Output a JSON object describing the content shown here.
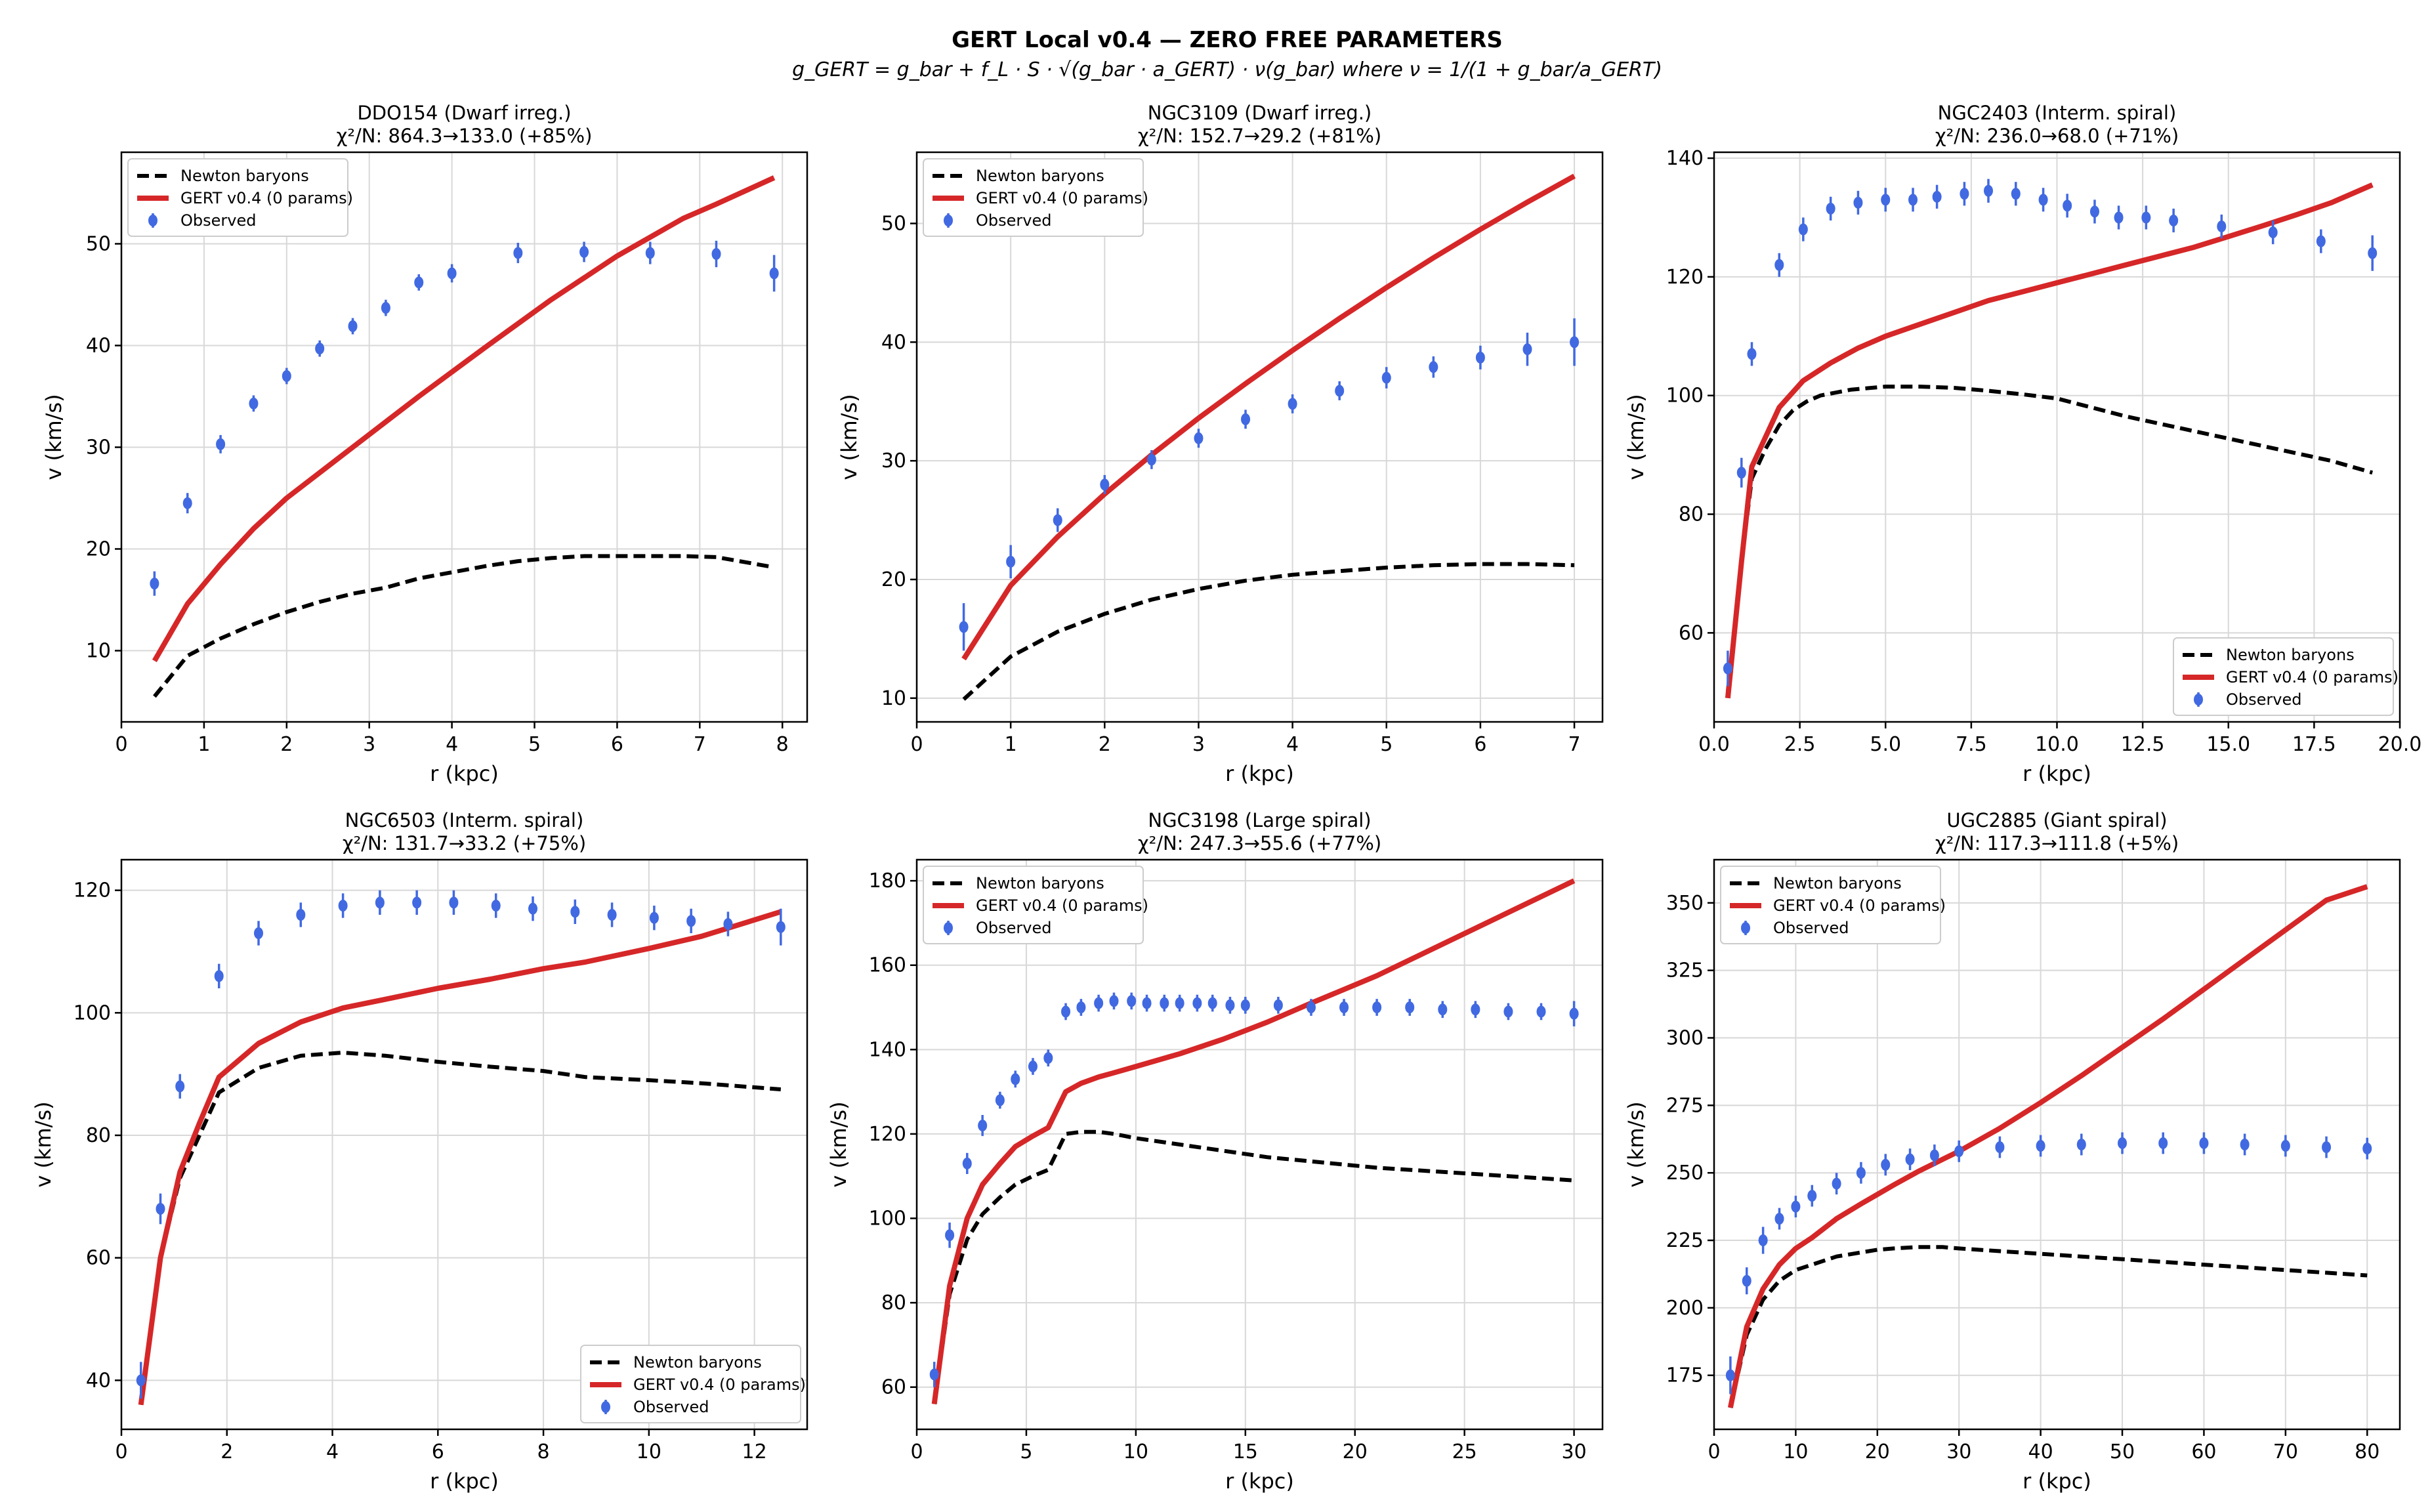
{
  "suptitle": "GERT Local v0.4 — ZERO FREE PARAMETERS",
  "formula": "g_GERT = g_bar + f_L · S · √(g_bar · a_GERT) · ν(g_bar)   where   ν = 1/(1 + g_bar/a_GERT)",
  "legend_labels": {
    "newton": "Newton baryons",
    "gert": "GERT v0.4 (0 params)",
    "obs": "Observed"
  },
  "colors": {
    "newton": "#000000",
    "gert": "#d62728",
    "observed": "#4169e1"
  },
  "chart_data": [
    {
      "type": "line",
      "title": "DDO154 (Dwarf irreg.)",
      "subtitle": "χ²/N: 864.3→133.0 (+85%)",
      "xlabel": "r (kpc)",
      "ylabel": "v (km/s)",
      "xlim": [
        0,
        8.3
      ],
      "ylim": [
        3,
        59
      ],
      "xticks": [
        0,
        1,
        2,
        3,
        4,
        5,
        6,
        7,
        8
      ],
      "yticks": [
        10,
        20,
        30,
        40,
        50
      ],
      "legend": "top-left",
      "grid": true,
      "newton": {
        "x": [
          0.4,
          0.8,
          1.2,
          1.6,
          2.0,
          2.4,
          2.8,
          3.2,
          3.6,
          4.0,
          4.4,
          4.8,
          5.2,
          5.6,
          6.0,
          6.4,
          6.8,
          7.2,
          7.9
        ],
        "y": [
          5.5,
          9.5,
          11.2,
          12.6,
          13.8,
          14.8,
          15.6,
          16.2,
          17.1,
          17.7,
          18.3,
          18.8,
          19.1,
          19.3,
          19.3,
          19.3,
          19.3,
          19.2,
          18.2
        ]
      },
      "gert": {
        "x": [
          0.4,
          0.8,
          1.2,
          1.6,
          2.0,
          2.8,
          3.6,
          4.4,
          5.2,
          6.0,
          6.8,
          7.2,
          7.9
        ],
        "y": [
          9.0,
          14.6,
          18.5,
          22.0,
          25.0,
          30.0,
          35.0,
          39.8,
          44.5,
          48.8,
          52.5,
          53.9,
          56.5
        ]
      },
      "observed": {
        "x": [
          0.4,
          0.8,
          1.2,
          1.6,
          2.0,
          2.4,
          2.8,
          3.2,
          3.6,
          4.0,
          4.8,
          5.6,
          6.4,
          7.2,
          7.9
        ],
        "y": [
          16.6,
          24.5,
          30.3,
          34.3,
          37.0,
          39.7,
          41.9,
          43.7,
          46.2,
          47.1,
          49.1,
          49.2,
          49.1,
          49.0,
          47.1
        ],
        "err": [
          1.2,
          1.0,
          0.9,
          0.8,
          0.8,
          0.8,
          0.8,
          0.8,
          0.8,
          0.9,
          1.0,
          1.0,
          1.1,
          1.3,
          1.8
        ]
      }
    },
    {
      "type": "line",
      "title": "NGC3109 (Dwarf irreg.)",
      "subtitle": "χ²/N: 152.7→29.2 (+81%)",
      "xlabel": "r (kpc)",
      "ylabel": "v (km/s)",
      "xlim": [
        0,
        7.3
      ],
      "ylim": [
        8,
        56
      ],
      "xticks": [
        0,
        1,
        2,
        3,
        4,
        5,
        6,
        7
      ],
      "yticks": [
        10,
        20,
        30,
        40,
        50
      ],
      "legend": "top-left",
      "grid": true,
      "newton": {
        "x": [
          0.5,
          1.0,
          1.5,
          2.0,
          2.5,
          3.0,
          3.5,
          4.0,
          4.5,
          5.0,
          5.5,
          6.0,
          6.5,
          7.0
        ],
        "y": [
          9.9,
          13.5,
          15.6,
          17.1,
          18.3,
          19.2,
          19.9,
          20.4,
          20.7,
          21.0,
          21.2,
          21.3,
          21.3,
          21.2
        ]
      },
      "gert": {
        "x": [
          0.5,
          1.0,
          1.5,
          2.0,
          2.5,
          3.0,
          3.5,
          4.0,
          4.5,
          5.0,
          5.5,
          6.0,
          6.5,
          7.0
        ],
        "y": [
          13.3,
          19.5,
          23.6,
          27.2,
          30.5,
          33.6,
          36.5,
          39.3,
          42.0,
          44.6,
          47.1,
          49.5,
          51.8,
          54.0
        ]
      },
      "observed": {
        "x": [
          0.5,
          1.0,
          1.5,
          2.0,
          2.5,
          3.0,
          3.5,
          4.0,
          4.5,
          5.0,
          5.5,
          6.0,
          6.5,
          7.0
        ],
        "y": [
          16.0,
          21.5,
          25.0,
          28.0,
          30.1,
          31.9,
          33.5,
          34.8,
          35.9,
          37.0,
          37.9,
          38.7,
          39.4,
          40.0
        ],
        "err": [
          2.0,
          1.4,
          1.0,
          0.8,
          0.8,
          0.8,
          0.8,
          0.8,
          0.8,
          0.9,
          0.9,
          1.0,
          1.4,
          2.0
        ]
      }
    },
    {
      "type": "line",
      "title": "NGC2403 (Interm. spiral)",
      "subtitle": "χ²/N: 236.0→68.0 (+71%)",
      "xlabel": "r (kpc)",
      "ylabel": "v (km/s)",
      "xlim": [
        0,
        20
      ],
      "ylim": [
        45,
        141
      ],
      "xticks": [
        0,
        2.5,
        5,
        7.5,
        10,
        12.5,
        15,
        17.5,
        20
      ],
      "xticklabels": [
        "0.0",
        "2.5",
        "5.0",
        "7.5",
        "10.0",
        "12.5",
        "15.0",
        "17.5",
        "20.0"
      ],
      "yticks": [
        60,
        80,
        100,
        120,
        140
      ],
      "legend": "bottom-right",
      "grid": true,
      "newton": {
        "x": [
          0.4,
          0.8,
          1.1,
          1.5,
          1.9,
          2.3,
          2.7,
          3.1,
          4.0,
          5.0,
          6.0,
          7.0,
          8.0,
          9.0,
          10.0,
          11.0,
          12.0,
          14.0,
          16.0,
          18.0,
          19.2
        ],
        "y": [
          50,
          72,
          86,
          91,
          95,
          97.5,
          99,
          100,
          101,
          101.5,
          101.5,
          101.3,
          100.8,
          100.2,
          99.5,
          98,
          96.5,
          94,
          91.5,
          89,
          87
        ]
      },
      "gert": {
        "x": [
          0.4,
          0.8,
          1.1,
          1.5,
          1.9,
          2.6,
          3.4,
          4.2,
          5.0,
          6.0,
          7.0,
          8.0,
          9.0,
          10.0,
          11.0,
          12.0,
          13.0,
          14.0,
          15.0,
          16.0,
          17.0,
          18.0,
          19.2
        ],
        "y": [
          49,
          72,
          88,
          93,
          98,
          102.5,
          105.5,
          108,
          110,
          112,
          114,
          116,
          117.5,
          119,
          120.5,
          122,
          123.5,
          125,
          126.8,
          128.6,
          130.5,
          132.5,
          135.5
        ]
      },
      "observed": {
        "x": [
          0.4,
          0.8,
          1.1,
          1.9,
          2.6,
          3.4,
          4.2,
          5.0,
          5.8,
          6.5,
          7.3,
          8.0,
          8.8,
          9.6,
          10.3,
          11.1,
          11.8,
          12.6,
          13.4,
          14.8,
          16.3,
          17.7,
          19.2
        ],
        "y": [
          54,
          87,
          107,
          122,
          128,
          131.5,
          132.5,
          133,
          133,
          133.5,
          134,
          134.5,
          134,
          133,
          132,
          131,
          130,
          130,
          129.5,
          128.5,
          127.5,
          126,
          124
        ],
        "err": [
          3,
          2.5,
          2,
          2,
          2,
          2,
          2,
          2,
          2,
          2,
          2,
          2,
          2,
          2,
          2,
          2,
          2,
          2,
          2,
          2,
          2,
          2,
          3
        ]
      }
    },
    {
      "type": "line",
      "title": "NGC6503 (Interm. spiral)",
      "subtitle": "χ²/N: 131.7→33.2 (+75%)",
      "xlabel": "r (kpc)",
      "ylabel": "v (km/s)",
      "xlim": [
        0,
        13
      ],
      "ylim": [
        32,
        125
      ],
      "xticks": [
        0,
        2,
        4,
        6,
        8,
        10,
        12
      ],
      "yticks": [
        40,
        60,
        80,
        100,
        120
      ],
      "legend": "bottom-right",
      "grid": true,
      "newton": {
        "x": [
          0.37,
          0.74,
          1.11,
          1.48,
          1.85,
          2.6,
          3.4,
          4.2,
          5.0,
          6.0,
          7.0,
          8.0,
          8.8,
          10.0,
          11.0,
          12.5
        ],
        "y": [
          36,
          60,
          73,
          80,
          87,
          91,
          93,
          93.5,
          93,
          92,
          91.2,
          90.5,
          89.5,
          89,
          88.5,
          87.5
        ]
      },
      "gert": {
        "x": [
          0.37,
          0.74,
          1.11,
          1.48,
          1.85,
          2.6,
          3.4,
          4.2,
          5.0,
          6.0,
          7.0,
          8.0,
          8.8,
          10.0,
          11.0,
          12.5
        ],
        "y": [
          36,
          60,
          74,
          82,
          89.5,
          95,
          98.5,
          100.8,
          102.2,
          104,
          105.5,
          107.2,
          108.3,
          110.5,
          112.5,
          116.5
        ]
      },
      "observed": {
        "x": [
          0.37,
          0.74,
          1.11,
          1.85,
          2.6,
          3.4,
          4.2,
          4.9,
          5.6,
          6.3,
          7.1,
          7.8,
          8.6,
          9.3,
          10.1,
          10.8,
          11.5,
          12.5
        ],
        "y": [
          40,
          68,
          88,
          106,
          113,
          116,
          117.5,
          118,
          118,
          118,
          117.5,
          117,
          116.5,
          116,
          115.5,
          115,
          114.5,
          114
        ],
        "err": [
          3,
          2.5,
          2,
          2,
          2,
          2,
          2,
          2,
          2,
          2,
          2,
          2,
          2,
          2,
          2,
          2,
          2,
          3
        ]
      }
    },
    {
      "type": "line",
      "title": "NGC3198 (Large spiral)",
      "subtitle": "χ²/N: 247.3→55.6 (+77%)",
      "xlabel": "r (kpc)",
      "ylabel": "v (km/s)",
      "xlim": [
        0,
        31.3
      ],
      "ylim": [
        50,
        185
      ],
      "xticks": [
        0,
        5,
        10,
        15,
        20,
        25,
        30
      ],
      "yticks": [
        60,
        80,
        100,
        120,
        140,
        160,
        180
      ],
      "legend": "top-left",
      "grid": true,
      "newton": {
        "x": [
          0.8,
          1.5,
          2.3,
          3.0,
          3.8,
          4.5,
          5.3,
          6.0,
          6.8,
          7.5,
          8.3,
          9.0,
          10.0,
          12.0,
          14.0,
          16.0,
          18.0,
          21.0,
          24.0,
          27.0,
          30.0
        ],
        "y": [
          56,
          82,
          95,
          101,
          105,
          108,
          110,
          111.5,
          120,
          120.5,
          120.5,
          120,
          119,
          117.5,
          116,
          114.5,
          113.5,
          112,
          111,
          110,
          109
        ]
      },
      "gert": {
        "x": [
          0.8,
          1.5,
          2.3,
          3.0,
          3.8,
          4.5,
          5.3,
          6.0,
          6.8,
          7.5,
          8.3,
          9.0,
          10.0,
          12.0,
          14.0,
          16.0,
          18.0,
          21.0,
          24.0,
          27.0,
          30.0
        ],
        "y": [
          56,
          84,
          100,
          108,
          113,
          117,
          119.5,
          121.5,
          130,
          132,
          133.5,
          134.5,
          136,
          139,
          142.5,
          146.5,
          151,
          157.5,
          165,
          172.5,
          180
        ]
      },
      "observed": {
        "x": [
          0.8,
          1.5,
          2.3,
          3.0,
          3.8,
          4.5,
          5.3,
          6.0,
          6.8,
          7.5,
          8.3,
          9.0,
          9.8,
          10.5,
          11.3,
          12.0,
          12.8,
          13.5,
          14.3,
          15.0,
          16.5,
          18.0,
          19.5,
          21.0,
          22.5,
          24.0,
          25.5,
          27.0,
          28.5,
          30.0
        ],
        "y": [
          63,
          96,
          113,
          122,
          128,
          133,
          136,
          138,
          149,
          150,
          151,
          151.5,
          151.5,
          151,
          151,
          151,
          151,
          151,
          150.5,
          150.5,
          150.5,
          150,
          150,
          150,
          150,
          149.5,
          149.5,
          149,
          149,
          148.5
        ],
        "err": [
          3,
          3,
          2.5,
          2.5,
          2,
          2,
          2,
          2,
          2,
          2,
          2,
          2,
          2,
          2,
          2,
          2,
          2,
          2,
          2,
          2,
          2,
          2,
          2,
          2,
          2,
          2,
          2,
          2,
          2,
          3
        ]
      }
    },
    {
      "type": "line",
      "title": "UGC2885 (Giant spiral)",
      "subtitle": "χ²/N: 117.3→111.8 (+5%)",
      "xlabel": "r (kpc)",
      "ylabel": "v (km/s)",
      "xlim": [
        0,
        84
      ],
      "ylim": [
        155,
        366
      ],
      "xticks": [
        0,
        10,
        20,
        30,
        40,
        50,
        60,
        70,
        80
      ],
      "yticks": [
        175,
        200,
        225,
        250,
        275,
        300,
        325,
        350
      ],
      "legend": "top-left",
      "grid": true,
      "newton": {
        "x": [
          2,
          4,
          6,
          8,
          10,
          12,
          15,
          18,
          20,
          22,
          25,
          28,
          30,
          35,
          40,
          45,
          50,
          55,
          60,
          65,
          70,
          75,
          80
        ],
        "y": [
          163,
          190,
          203,
          210,
          214,
          216,
          219,
          220.5,
          221.5,
          222,
          222.5,
          222.5,
          222,
          221,
          220,
          219,
          218,
          217,
          216,
          215,
          214,
          213,
          212
        ]
      },
      "gert": {
        "x": [
          2,
          4,
          6,
          8,
          10,
          12,
          15,
          18,
          20,
          22,
          25,
          28,
          30,
          35,
          40,
          45,
          50,
          55,
          60,
          65,
          70,
          75,
          80
        ],
        "y": [
          163,
          193,
          207,
          216,
          222,
          226,
          233,
          238.5,
          242,
          245.5,
          250.5,
          255,
          258,
          266.5,
          276,
          286,
          296.5,
          307,
          318,
          329,
          340,
          351,
          356
        ]
      },
      "observed": {
        "x": [
          2,
          4,
          6,
          8,
          10,
          12,
          15,
          18,
          21,
          24,
          27,
          30,
          35,
          40,
          45,
          50,
          55,
          60,
          65,
          70,
          75,
          80
        ],
        "y": [
          175,
          210,
          225,
          233,
          237.5,
          241.5,
          246,
          250,
          253,
          255,
          256.5,
          258,
          259.5,
          260,
          260.5,
          261,
          261,
          261,
          260.5,
          260,
          259.5,
          259
        ],
        "err": [
          7,
          5,
          5,
          4,
          4,
          4,
          4,
          4,
          4,
          4,
          4,
          4,
          4,
          4,
          4,
          4,
          4,
          4,
          4,
          4,
          4,
          4
        ]
      }
    }
  ]
}
